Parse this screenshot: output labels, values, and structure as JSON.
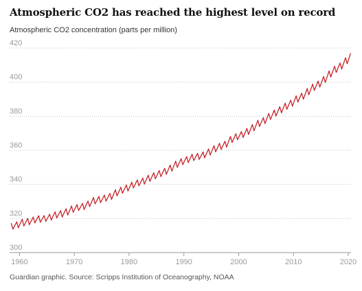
{
  "header": {
    "title": "Atmospheric CO2 has reached the highest level on record",
    "subtitle": "Atmospheric CO2 concentration (parts per million)"
  },
  "footer": {
    "source": "Guardian graphic. Source: Scripps Institution of Oceanography, NOAA"
  },
  "colors": {
    "line": "#c7232b",
    "grid": "#bdbdbd",
    "axis": "#999999",
    "tick_label": "#999999"
  },
  "chart_data": {
    "type": "line",
    "title": "Atmospheric CO2 has reached the highest level on record",
    "subtitle": "Atmospheric CO2 concentration (parts per million)",
    "xlabel": "",
    "ylabel": "",
    "xlim": [
      1958.2,
      2020.5
    ],
    "ylim": [
      300,
      420
    ],
    "x_ticks": [
      1960,
      1970,
      1980,
      1990,
      2000,
      2010,
      2020
    ],
    "y_ticks": [
      300,
      320,
      340,
      360,
      380,
      400,
      420
    ],
    "grid": "horizontal dotted",
    "legend": "none",
    "series": [
      {
        "color": "#c7232b",
        "x": [
          1958.5,
          1958.8,
          1959.5,
          1959.8,
          1960.5,
          1960.8,
          1961.5,
          1961.8,
          1962.5,
          1962.8,
          1963.5,
          1963.8,
          1964.5,
          1964.8,
          1965.5,
          1965.8,
          1966.5,
          1966.8,
          1967.5,
          1967.8,
          1968.5,
          1968.8,
          1969.5,
          1969.8,
          1970.5,
          1970.8,
          1971.5,
          1971.8,
          1972.5,
          1972.8,
          1973.5,
          1973.8,
          1974.5,
          1974.8,
          1975.5,
          1975.8,
          1976.5,
          1976.8,
          1977.5,
          1977.8,
          1978.5,
          1978.8,
          1979.5,
          1979.8,
          1980.5,
          1980.8,
          1981.5,
          1981.8,
          1982.5,
          1982.8,
          1983.5,
          1983.8,
          1984.5,
          1984.8,
          1985.5,
          1985.8,
          1986.5,
          1986.8,
          1987.5,
          1987.8,
          1988.5,
          1988.8,
          1989.5,
          1989.8,
          1990.5,
          1990.8,
          1991.5,
          1991.8,
          1992.5,
          1992.8,
          1993.5,
          1993.8,
          1994.5,
          1994.8,
          1995.5,
          1995.8,
          1996.5,
          1996.8,
          1997.5,
          1997.8,
          1998.5,
          1998.8,
          1999.5,
          1999.8,
          2000.5,
          2000.8,
          2001.5,
          2001.8,
          2002.5,
          2002.8,
          2003.5,
          2003.8,
          2004.5,
          2004.8,
          2005.5,
          2005.8,
          2006.5,
          2006.8,
          2007.5,
          2007.8,
          2008.5,
          2008.8,
          2009.5,
          2009.8,
          2010.5,
          2010.8,
          2011.5,
          2011.8,
          2012.5,
          2012.8,
          2013.5,
          2013.8,
          2014.5,
          2014.8,
          2015.5,
          2015.8,
          2016.5,
          2016.8,
          2017.5,
          2017.8,
          2018.5,
          2018.8,
          2019.5,
          2019.8,
          2020.4
        ],
        "y": [
          317.0,
          313.8,
          318.0,
          314.6,
          319.5,
          315.6,
          320.0,
          316.4,
          320.8,
          317.4,
          321.6,
          317.8,
          321.7,
          318.3,
          322.5,
          319.1,
          323.9,
          320.3,
          324.6,
          320.9,
          325.7,
          322.0,
          327.3,
          323.6,
          328.1,
          324.7,
          328.8,
          325.3,
          330.2,
          327.0,
          332.3,
          328.6,
          332.9,
          329.3,
          333.7,
          330.2,
          334.7,
          331.2,
          336.8,
          333.3,
          338.3,
          334.8,
          339.6,
          336.1,
          341.3,
          337.9,
          342.6,
          339.2,
          343.7,
          340.2,
          345.4,
          341.8,
          346.8,
          343.3,
          348.1,
          344.6,
          349.4,
          345.9,
          351.3,
          347.8,
          353.6,
          350.0,
          355.1,
          351.6,
          356.3,
          352.8,
          357.6,
          354.0,
          358.2,
          354.7,
          359.0,
          355.6,
          360.8,
          357.2,
          362.7,
          359.1,
          364.1,
          360.5,
          365.3,
          361.9,
          368.1,
          364.6,
          369.7,
          366.2,
          371.0,
          367.5,
          372.8,
          369.3,
          375.1,
          371.5,
          377.6,
          374.0,
          379.1,
          375.7,
          381.6,
          378.1,
          383.6,
          380.1,
          385.6,
          382.0,
          387.6,
          384.1,
          389.4,
          385.9,
          391.9,
          388.3,
          393.5,
          390.0,
          396.2,
          392.6,
          398.8,
          395.2,
          400.6,
          397.1,
          403.3,
          399.8,
          406.6,
          403.0,
          409.3,
          405.7,
          411.2,
          407.7,
          414.3,
          410.8,
          416.7
        ]
      }
    ]
  }
}
